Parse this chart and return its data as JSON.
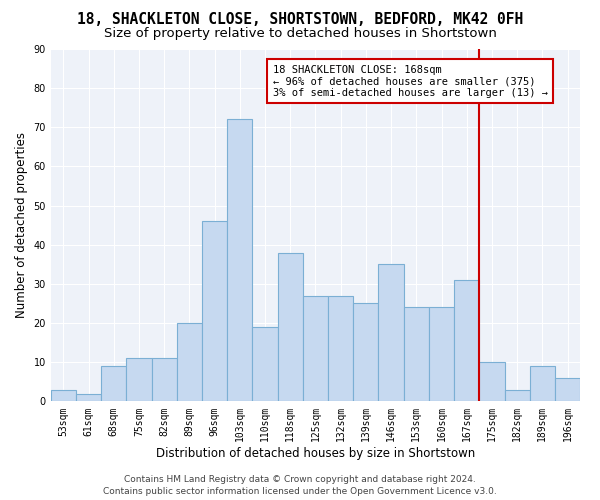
{
  "title": "18, SHACKLETON CLOSE, SHORTSTOWN, BEDFORD, MK42 0FH",
  "subtitle": "Size of property relative to detached houses in Shortstown",
  "xlabel": "Distribution of detached houses by size in Shortstown",
  "ylabel": "Number of detached properties",
  "categories": [
    "53sqm",
    "61sqm",
    "68sqm",
    "75sqm",
    "82sqm",
    "89sqm",
    "96sqm",
    "103sqm",
    "110sqm",
    "118sqm",
    "125sqm",
    "132sqm",
    "139sqm",
    "146sqm",
    "153sqm",
    "160sqm",
    "167sqm",
    "175sqm",
    "182sqm",
    "189sqm",
    "196sqm"
  ],
  "values": [
    3,
    2,
    9,
    11,
    11,
    20,
    46,
    72,
    19,
    38,
    27,
    27,
    25,
    35,
    24,
    24,
    31,
    10,
    3,
    9,
    6
  ],
  "bar_color": "#c6d9f0",
  "bar_edge_color": "#7bafd4",
  "background_color": "#eef2f9",
  "grid_color": "#ffffff",
  "vline_x_index": 16,
  "vline_color": "#cc0000",
  "annotation_text": "18 SHACKLETON CLOSE: 168sqm\n← 96% of detached houses are smaller (375)\n3% of semi-detached houses are larger (13) →",
  "annotation_box_color": "#cc0000",
  "ylim": [
    0,
    90
  ],
  "yticks": [
    0,
    10,
    20,
    30,
    40,
    50,
    60,
    70,
    80,
    90
  ],
  "footer": "Contains HM Land Registry data © Crown copyright and database right 2024.\nContains public sector information licensed under the Open Government Licence v3.0.",
  "title_fontsize": 10.5,
  "subtitle_fontsize": 9.5,
  "xlabel_fontsize": 8.5,
  "ylabel_fontsize": 8.5,
  "tick_fontsize": 7,
  "annotation_fontsize": 7.5,
  "footer_fontsize": 6.5
}
